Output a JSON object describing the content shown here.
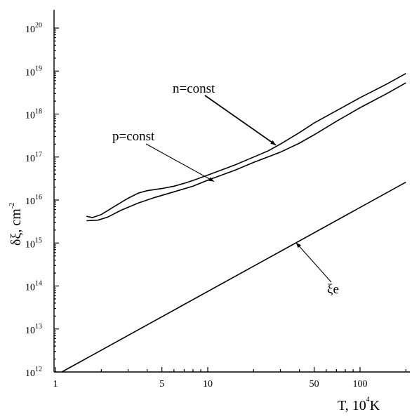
{
  "chart_data": {
    "type": "line",
    "xscale": "log",
    "yscale": "log",
    "xlim": [
      1,
      200
    ],
    "ylim": [
      1000000000000.0,
      2e+20
    ],
    "xlabel": "T, 10",
    "xlabel_sup": "4",
    "xlabel_unit": "K",
    "ylabel": "δξ, cm",
    "ylabel_sup": "-2",
    "grid": false,
    "x_ticks": [
      {
        "value": 1,
        "label": "1"
      },
      {
        "value": 5,
        "label": "5"
      },
      {
        "value": 10,
        "label": "10"
      },
      {
        "value": 50,
        "label": "50"
      },
      {
        "value": 100,
        "label": "100"
      }
    ],
    "x_minor_ticks": [
      2,
      3,
      4,
      6,
      7,
      8,
      9,
      20,
      30,
      40,
      60,
      70,
      80,
      90,
      200
    ],
    "y_ticks": [
      {
        "value": 1000000000000.0,
        "base": "10",
        "exp": "12"
      },
      {
        "value": 10000000000000.0,
        "base": "10",
        "exp": "13"
      },
      {
        "value": 100000000000000.0,
        "base": "10",
        "exp": "14"
      },
      {
        "value": 1000000000000000.0,
        "base": "10",
        "exp": "15"
      },
      {
        "value": 1e+16,
        "base": "10",
        "exp": "16"
      },
      {
        "value": 1e+17,
        "base": "10",
        "exp": "17"
      },
      {
        "value": 1e+18,
        "base": "10",
        "exp": "18"
      },
      {
        "value": 1e+19,
        "base": "10",
        "exp": "19"
      },
      {
        "value": 1e+20,
        "base": "10",
        "exp": "20"
      }
    ],
    "series": [
      {
        "name": "n=const",
        "points": [
          [
            1.6,
            4200000000000000.0
          ],
          [
            1.75,
            3900000000000000.0
          ],
          [
            2.0,
            4600000000000000.0
          ],
          [
            2.5,
            7500000000000000.0
          ],
          [
            3.0,
            1.1e+16
          ],
          [
            3.5,
            1.45e+16
          ],
          [
            4.0,
            1.65e+16
          ],
          [
            5.0,
            1.85e+16
          ],
          [
            6.0,
            2.1e+16
          ],
          [
            7.0,
            2.45e+16
          ],
          [
            8.0,
            2.85e+16
          ],
          [
            10.0,
            3.8e+16
          ],
          [
            15.0,
            6.5e+16
          ],
          [
            20.0,
            1e+17
          ],
          [
            25.0,
            1.4e+17
          ],
          [
            30.0,
            2e+17
          ],
          [
            40.0,
            3.7e+17
          ],
          [
            50.0,
            6.2e+17
          ],
          [
            70.0,
            1.2e+18
          ],
          [
            100.0,
            2.4e+18
          ],
          [
            150.0,
            5e+18
          ],
          [
            200.0,
            8.8e+18
          ]
        ]
      },
      {
        "name": "p=const",
        "points": [
          [
            1.6,
            3300000000000000.0
          ],
          [
            1.9,
            3400000000000000.0
          ],
          [
            2.2,
            4000000000000000.0
          ],
          [
            2.7,
            5800000000000000.0
          ],
          [
            3.5,
            8500000000000000.0
          ],
          [
            4.5,
            1.15e+16
          ],
          [
            6.0,
            1.55e+16
          ],
          [
            8.0,
            2.1e+16
          ],
          [
            10.0,
            2.9e+16
          ],
          [
            15.0,
            4.9e+16
          ],
          [
            20.0,
            7.5e+16
          ],
          [
            30.0,
            1.3e+17
          ],
          [
            40.0,
            2.1e+17
          ],
          [
            50.0,
            3.3e+17
          ],
          [
            70.0,
            6.8e+17
          ],
          [
            100.0,
            1.4e+18
          ],
          [
            150.0,
            3e+18
          ],
          [
            200.0,
            5.3e+18
          ]
        ]
      },
      {
        "name": "ξe",
        "points": [
          [
            1.1,
            1000000000000.0
          ],
          [
            200.0,
            2.6e+16
          ]
        ]
      }
    ],
    "annotations": [
      {
        "text": "n=const",
        "arrow_to": [
          28,
          1.9e+17
        ]
      },
      {
        "text": "p=const",
        "arrow_to": [
          11,
          2.7e+16
        ]
      },
      {
        "text": "ξe",
        "arrow_to": [
          38,
          1020000000000000.0
        ]
      }
    ]
  }
}
